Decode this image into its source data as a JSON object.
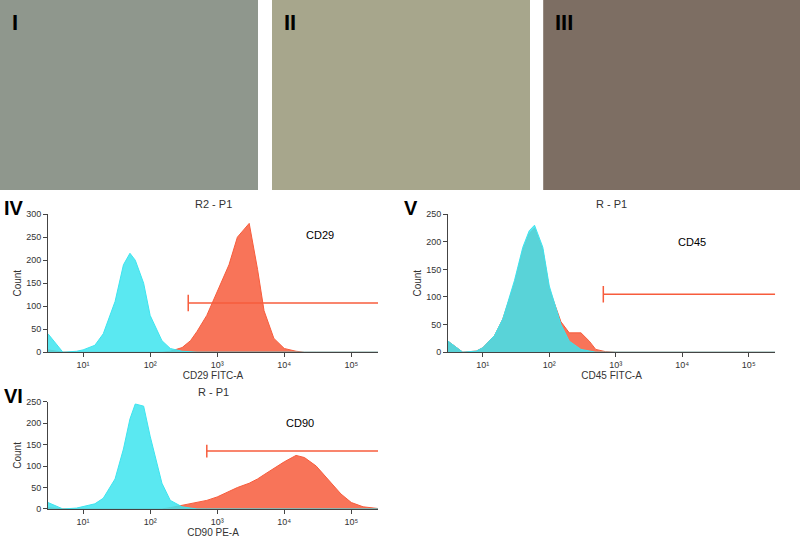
{
  "images": [
    {
      "label": "I"
    },
    {
      "label": "II"
    },
    {
      "label": "III"
    }
  ],
  "chart_data": [
    {
      "type": "area",
      "panel": "IV",
      "title": "R2 - P1",
      "x_label": "CD29 FITC-A",
      "y_label": "Count",
      "log": "x",
      "grid": false,
      "x": [
        3,
        5,
        8,
        10,
        15,
        20,
        30,
        40,
        50,
        60,
        80,
        100,
        150,
        200,
        300,
        400,
        500,
        700,
        1000,
        1500,
        2000,
        3000,
        4000,
        5000,
        7000,
        10000,
        15000,
        20000,
        30000,
        50000,
        70000,
        100000,
        150000,
        250000
      ],
      "series": [
        {
          "color": "#f75c3c",
          "values": [
            5,
            0,
            0,
            0,
            0,
            0,
            0,
            0,
            0,
            0,
            0,
            0,
            0,
            2,
            10,
            25,
            45,
            80,
            130,
            190,
            250,
            280,
            180,
            90,
            30,
            8,
            2,
            0,
            0,
            0,
            0,
            0,
            0,
            0
          ]
        },
        {
          "color": "#3de4ef",
          "values": [
            40,
            0,
            2,
            5,
            15,
            40,
            110,
            190,
            215,
            200,
            150,
            80,
            25,
            8,
            2,
            0,
            0,
            0,
            0,
            0,
            0,
            0,
            0,
            0,
            0,
            0,
            0,
            0,
            0,
            0,
            0,
            0,
            0,
            0
          ]
        }
      ],
      "gate": {
        "x": [
          370,
          250000
        ],
        "y": 107
      },
      "annotations": [
        {
          "text": "CD29",
          "x": 20000,
          "y": 255
        }
      ],
      "xlim": [
        3,
        250000
      ],
      "xticks": [
        {
          "value": 10,
          "label": "10¹"
        },
        {
          "value": 100,
          "label": "10²"
        },
        {
          "value": 1000,
          "label": "10³"
        },
        {
          "value": 10000,
          "label": "10⁴"
        },
        {
          "value": 100000,
          "label": "10⁵"
        }
      ],
      "ylim": [
        0,
        300
      ],
      "yticks": [
        0,
        50,
        100,
        150,
        200,
        250,
        300
      ]
    },
    {
      "type": "area",
      "panel": "V",
      "title": "R - P1",
      "x_label": "CD45 FITC-A",
      "y_label": "Count",
      "log": "x",
      "grid": false,
      "x": [
        3,
        5,
        8,
        10,
        15,
        20,
        30,
        40,
        50,
        60,
        80,
        100,
        150,
        200,
        300,
        400,
        500,
        700,
        1000,
        1500,
        2000,
        3000,
        4000,
        5000,
        7000,
        10000,
        15000,
        20000,
        30000,
        50000,
        70000,
        100000,
        150000,
        250000
      ],
      "series": [
        {
          "color": "#f75c3c",
          "values": [
            20,
            0,
            2,
            8,
            30,
            60,
            125,
            185,
            215,
            225,
            185,
            115,
            55,
            35,
            35,
            20,
            5,
            1,
            0,
            0,
            0,
            0,
            0,
            0,
            0,
            0,
            0,
            0,
            0,
            0,
            0,
            0,
            0,
            0
          ]
        },
        {
          "color": "#3de4ef",
          "values": [
            20,
            0,
            2,
            8,
            30,
            60,
            130,
            190,
            220,
            230,
            190,
            120,
            50,
            20,
            5,
            2,
            0,
            0,
            0,
            0,
            0,
            0,
            0,
            0,
            0,
            0,
            0,
            0,
            0,
            0,
            0,
            0,
            0,
            0
          ]
        }
      ],
      "gate": {
        "x": [
          650,
          250000
        ],
        "y": 105
      },
      "annotations": [
        {
          "text": "CD45",
          "x": 8000,
          "y": 200
        }
      ],
      "xlim": [
        3,
        250000
      ],
      "xticks": [
        {
          "value": 10,
          "label": "10¹"
        },
        {
          "value": 100,
          "label": "10²"
        },
        {
          "value": 1000,
          "label": "10³"
        },
        {
          "value": 10000,
          "label": "10⁴"
        },
        {
          "value": 100000,
          "label": "10⁵"
        }
      ],
      "ylim": [
        0,
        250
      ],
      "yticks": [
        0,
        50,
        100,
        150,
        200,
        250
      ]
    },
    {
      "type": "area",
      "panel": "VI",
      "title": "R - P1",
      "x_label": "CD90 PE-A",
      "y_label": "Count",
      "log": "x",
      "grid": false,
      "x": [
        3,
        5,
        8,
        10,
        15,
        20,
        30,
        40,
        50,
        60,
        80,
        100,
        150,
        200,
        300,
        400,
        500,
        700,
        1000,
        1500,
        2000,
        3000,
        4000,
        5000,
        7000,
        10000,
        15000,
        20000,
        30000,
        50000,
        70000,
        100000,
        150000,
        250000
      ],
      "series": [
        {
          "color": "#f75c3c",
          "values": [
            3,
            0,
            0,
            0,
            0,
            0,
            0,
            0,
            0,
            0,
            0,
            0,
            0,
            3,
            8,
            12,
            15,
            20,
            28,
            40,
            50,
            60,
            70,
            80,
            95,
            110,
            125,
            120,
            100,
            60,
            35,
            15,
            5,
            1
          ]
        },
        {
          "color": "#3de4ef",
          "values": [
            15,
            0,
            2,
            5,
            12,
            25,
            70,
            140,
            210,
            245,
            240,
            170,
            60,
            20,
            5,
            2,
            0,
            0,
            0,
            0,
            0,
            0,
            0,
            0,
            0,
            0,
            0,
            0,
            0,
            0,
            0,
            0,
            0,
            0
          ]
        }
      ],
      "gate": {
        "x": [
          700,
          250000
        ],
        "y": 135
      },
      "annotations": [
        {
          "text": "CD90",
          "x": 10000,
          "y": 200
        }
      ],
      "xlim": [
        3,
        250000
      ],
      "xticks": [
        {
          "value": 10,
          "label": "10¹"
        },
        {
          "value": 100,
          "label": "10²"
        },
        {
          "value": 1000,
          "label": "10³"
        },
        {
          "value": 10000,
          "label": "10⁴"
        },
        {
          "value": 100000,
          "label": "10⁵"
        }
      ],
      "ylim": [
        0,
        250
      ],
      "yticks": [
        0,
        50,
        100,
        150,
        200,
        250
      ]
    }
  ]
}
